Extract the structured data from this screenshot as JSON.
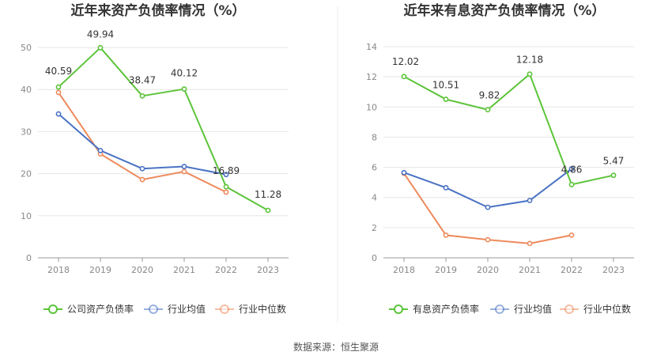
{
  "source": "数据来源：恒生聚源",
  "colors": {
    "company": "#5cc43a",
    "avg": "#4a72c4",
    "median": "#ee8a5c",
    "grid": "#e6e6e6",
    "axis": "#999999"
  },
  "chart_data": [
    {
      "type": "line",
      "title": "近年来资产负债率情况（%）",
      "categories": [
        "2018",
        "2019",
        "2020",
        "2021",
        "2022",
        "2023"
      ],
      "ylim": [
        0,
        50
      ],
      "yticks": [
        0,
        10,
        20,
        30,
        40,
        50
      ],
      "grid": true,
      "legend": "bottom",
      "series": [
        {
          "name": "公司资产负债率",
          "key": "company",
          "values": [
            40.59,
            49.94,
            38.47,
            40.12,
            16.89,
            11.28
          ],
          "labels": [
            "40.59",
            "49.94",
            "38.47",
            "40.12",
            "16.89",
            "11.28"
          ]
        },
        {
          "name": "行业均值",
          "key": "avg",
          "values": [
            34.2,
            25.5,
            21.2,
            21.7,
            19.8,
            null
          ]
        },
        {
          "name": "行业中位数",
          "key": "median",
          "values": [
            39.3,
            24.7,
            18.6,
            20.5,
            15.6,
            null
          ]
        }
      ]
    },
    {
      "type": "line",
      "title": "近年来有息资产负债率情况（%）",
      "categories": [
        "2018",
        "2019",
        "2020",
        "2021",
        "2022",
        "2023"
      ],
      "ylim": [
        0,
        14
      ],
      "yticks": [
        0,
        2,
        4,
        6,
        8,
        10,
        12,
        14
      ],
      "grid": true,
      "legend": "bottom",
      "series": [
        {
          "name": "有息资产负债率",
          "key": "company",
          "values": [
            12.02,
            10.51,
            9.82,
            12.18,
            4.86,
            5.47
          ],
          "labels": [
            "12.02",
            "10.51",
            "9.82",
            "12.18",
            "4.86",
            "5.47"
          ]
        },
        {
          "name": "行业均值",
          "key": "avg",
          "values": [
            5.65,
            4.65,
            3.35,
            3.8,
            5.9,
            null
          ]
        },
        {
          "name": "行业中位数",
          "key": "median",
          "values": [
            5.6,
            1.5,
            1.2,
            0.95,
            1.5,
            null
          ]
        }
      ]
    }
  ]
}
